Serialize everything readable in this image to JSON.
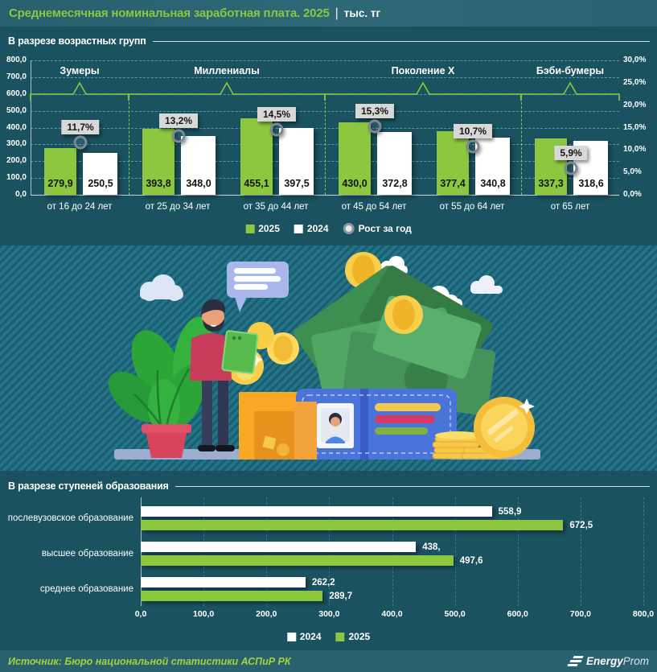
{
  "title": {
    "main": "Среднемесячная номинальная заработная плата. 2025",
    "divider": "|",
    "units": "тыс. тг"
  },
  "colors": {
    "accent_green": "#8DC63F",
    "background": "#1A5260",
    "title_bar": "#2B6373",
    "grid_dashed": "#56A7BC",
    "grid_dashed_bottom": "#2E7E91",
    "label_box": "#D8D8D8",
    "marker_ring": "#7E8892",
    "footer_bar": "#29616F",
    "footer_text": "#A4D23F",
    "bar_white": "#FFFFFF"
  },
  "chart_data": [
    {
      "type": "bar",
      "title": "В разрезе возрастных групп",
      "categories": [
        "от 16 до 24 лет",
        "от 25 до 34 лет",
        "от 35 до 44 лет",
        "от 45 до 54 лет",
        "от 55 до 64 лет",
        "от 65 лет"
      ],
      "series": [
        {
          "name": "2025",
          "color": "#8DC63F",
          "values": [
            279.9,
            393.8,
            455.1,
            430.0,
            377.4,
            337.3
          ],
          "labels": [
            "279,9",
            "393,8",
            "455,1",
            "430,0",
            "377,4",
            "337,3"
          ]
        },
        {
          "name": "2024",
          "color": "#FFFFFF",
          "values": [
            250.5,
            348.0,
            397.5,
            372.8,
            340.8,
            318.6
          ],
          "labels": [
            "250,5",
            "348,0",
            "397,5",
            "372,8",
            "340,8",
            "318,6"
          ]
        }
      ],
      "growth": {
        "name": "Рост за год",
        "values": [
          11.7,
          13.2,
          14.5,
          15.3,
          10.7,
          5.9
        ],
        "labels": [
          "11,7%",
          "13,2%",
          "14,5%",
          "15,3%",
          "10,7%",
          "5,9%"
        ]
      },
      "generations": [
        {
          "label": "Зумеры",
          "from": 0,
          "to": 0
        },
        {
          "label": "Миллениалы",
          "from": 1,
          "to": 2
        },
        {
          "label": "Поколение X",
          "from": 3,
          "to": 4
        },
        {
          "label": "Бэби-бумеры",
          "from": 5,
          "to": 5
        }
      ],
      "left_axis": {
        "min": 0,
        "max": 800,
        "step": 100,
        "labels": [
          "0,0",
          "100,0",
          "200,0",
          "300,0",
          "400,0",
          "500,0",
          "600,0",
          "700,0",
          "800,0"
        ]
      },
      "right_axis": {
        "min": 0,
        "max": 30,
        "step": 5,
        "labels": [
          "0,0%",
          "5,0%",
          "10,0%",
          "15,0%",
          "20,0%",
          "25,0%",
          "30,0%"
        ]
      },
      "legend": [
        {
          "label": "2025",
          "swatch": "green"
        },
        {
          "label": "2024",
          "swatch": "white"
        },
        {
          "label": "Рост за год",
          "swatch": "ring"
        }
      ],
      "grid": true,
      "legend_position": "bottom"
    },
    {
      "type": "bar",
      "orientation": "horizontal",
      "title": "В разрезе ступеней образования",
      "categories": [
        "послевузовское образование",
        "высшее образование",
        "среднее образование"
      ],
      "series": [
        {
          "name": "2024",
          "color": "#FFFFFF",
          "values": [
            558.9,
            438,
            262.2
          ],
          "labels": [
            "558,9",
            "438,",
            "262,2"
          ]
        },
        {
          "name": "2025",
          "color": "#8DC63F",
          "values": [
            672.5,
            497.6,
            289.7
          ],
          "labels": [
            "672,5",
            "497,6",
            "289,7"
          ]
        }
      ],
      "x_axis": {
        "min": 0,
        "max": 800,
        "step": 100,
        "labels": [
          "0,0",
          "100,0",
          "200,0",
          "300,0",
          "400,0",
          "500,0",
          "600,0",
          "700,0",
          "800,0"
        ]
      },
      "legend": [
        {
          "label": "2024",
          "swatch": "white"
        },
        {
          "label": "2025",
          "swatch": "green"
        }
      ],
      "grid": true,
      "legend_position": "bottom"
    }
  ],
  "illustration": {
    "description": "Мужчина с планшетом рядом с растением, кучей денег, кошельком и золотыми монетами"
  },
  "footer": {
    "source": "Источник: Бюро национальной статистики АСПиР РК",
    "logo": {
      "bold": "Energy",
      "light": "Prom"
    }
  }
}
